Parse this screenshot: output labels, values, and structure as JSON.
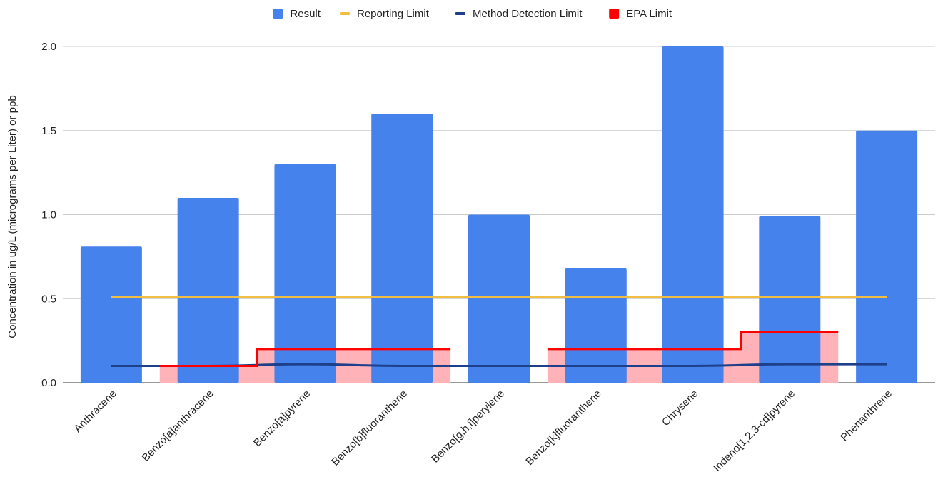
{
  "chart_data": {
    "type": "bar",
    "title": "",
    "xlabel": "",
    "ylabel": "Concentration in ug/L (micrograms per Liter) or ppb",
    "ylim": [
      0,
      2.0
    ],
    "yticks": [
      "0.0",
      "0.5",
      "1.0",
      "1.5",
      "2.0"
    ],
    "yticks_values": [
      0,
      0.5,
      1.0,
      1.5,
      2.0
    ],
    "grid": true,
    "legend_position": "top",
    "categories": [
      "Anthracene",
      "Benzo[a]anthracene",
      "Benzo[a]pyrene",
      "Benzo[b]fluoranthene",
      "Benzo[g,h,i]perylene",
      "Benzo[k]fluoranthene",
      "Chrysene",
      "Indeno[1,2,3-cd]pyrene",
      "Phenanthrene"
    ],
    "series": [
      {
        "name": "Result",
        "kind": "bar",
        "color": "#4582EC",
        "values": [
          0.81,
          1.1,
          1.3,
          1.6,
          1.0,
          0.68,
          2.0,
          0.99,
          1.5
        ]
      },
      {
        "name": "Reporting Limit",
        "kind": "line",
        "color": "#F1BE42",
        "values": [
          0.51,
          0.51,
          0.51,
          0.51,
          0.51,
          0.51,
          0.51,
          0.51,
          0.51
        ]
      },
      {
        "name": "Method Detection Limit",
        "kind": "line",
        "color": "#1E3F8A",
        "values": [
          0.1,
          0.1,
          0.11,
          0.1,
          0.1,
          0.1,
          0.1,
          0.11,
          0.11
        ]
      },
      {
        "name": "EPA Limit",
        "kind": "stepped-area",
        "color": "#FF0000",
        "fill": "#FFB3B8",
        "values": [
          null,
          0.1,
          0.2,
          0.2,
          null,
          0.2,
          0.2,
          0.3,
          null
        ]
      }
    ]
  }
}
